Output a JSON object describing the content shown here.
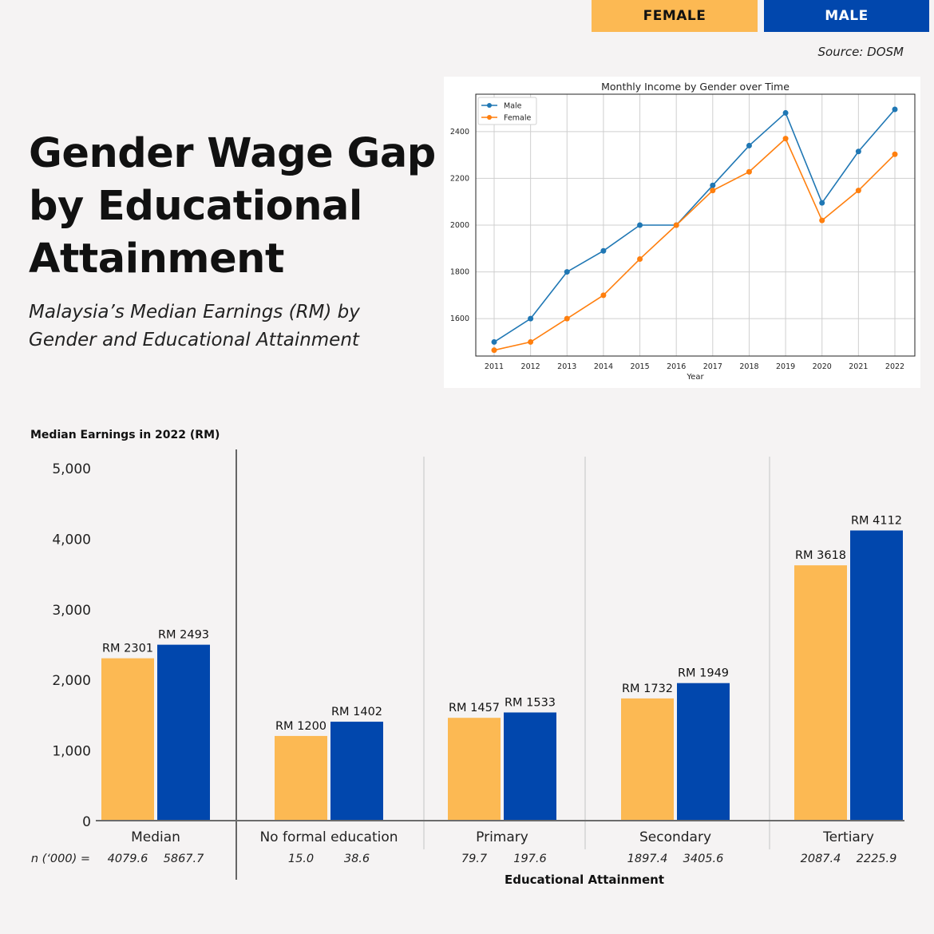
{
  "legend": {
    "female_label": "FEMALE",
    "male_label": "MALE",
    "female_color": "#fcb953",
    "male_color": "#0147ad"
  },
  "source": "Source: DOSM",
  "title": "Gender Wage Gap by Educational Attainment",
  "subtitle": "Malaysia’s Median Earnings (RM) by Gender and Educational Attainment",
  "chart_data": [
    {
      "type": "line",
      "title": "Monthly Income by Gender over Time",
      "xlabel": "Year",
      "ylabel": "",
      "x": [
        2011,
        2012,
        2013,
        2014,
        2015,
        2016,
        2017,
        2018,
        2019,
        2020,
        2021,
        2022
      ],
      "ylim": [
        1440,
        2560
      ],
      "yticks": [
        1600,
        1800,
        2000,
        2200,
        2400
      ],
      "grid": true,
      "legend_position": "top-left",
      "series": [
        {
          "name": "Male",
          "color": "#1f77b4",
          "values": [
            1500,
            1600,
            1800,
            1890,
            2000,
            2000,
            2170,
            2340,
            2480,
            2095,
            2315,
            2495
          ]
        },
        {
          "name": "Female",
          "color": "#ff7f0e",
          "values": [
            1465,
            1500,
            1600,
            1700,
            1855,
            2000,
            2148,
            2228,
            2370,
            2020,
            2148,
            2303
          ]
        }
      ]
    },
    {
      "type": "bar",
      "title": "",
      "ylabel": "Median Earnings in 2022 (RM)",
      "xlabel": "Educational Attainment",
      "ylim": [
        0,
        5000
      ],
      "yticks": [
        "0",
        "1,000",
        "2,000",
        "3,000",
        "4,000",
        "5,000"
      ],
      "categories": [
        "Median",
        "No formal education",
        "Primary",
        "Secondary",
        "Tertiary"
      ],
      "series": [
        {
          "color": "#fcb953",
          "values": [
            2301,
            1200,
            1457,
            1732,
            3618
          ],
          "labels": [
            "RM 2301",
            "RM 1200",
            "RM 1457",
            "RM 1732",
            "RM 3618"
          ]
        },
        {
          "color": "#0147ad",
          "values": [
            2493,
            1402,
            1533,
            1949,
            4112
          ],
          "labels": [
            "RM 2493",
            "RM 1402",
            "RM 1533",
            "RM 1949",
            "RM 4112"
          ]
        }
      ],
      "n_label": "n (‘000) =",
      "n_values": [
        [
          "4079.6",
          "5867.7"
        ],
        [
          "15.0",
          "38.6"
        ],
        [
          "79.7",
          "197.6"
        ],
        [
          "1897.4",
          "3405.6"
        ],
        [
          "2087.4",
          "2225.9"
        ]
      ]
    }
  ]
}
